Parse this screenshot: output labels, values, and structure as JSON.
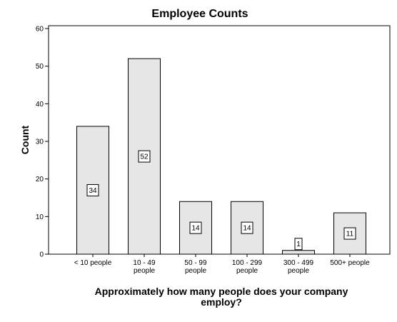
{
  "chart_data": {
    "type": "bar",
    "title": "Employee Counts",
    "ylabel": "Count",
    "xlabel_lines": [
      "Approximately how many people does your company",
      "employ?"
    ],
    "categories": [
      [
        "< 10 people"
      ],
      [
        "10 - 49",
        "people"
      ],
      [
        "50 - 99",
        "people"
      ],
      [
        "100 - 299",
        "people"
      ],
      [
        "300 - 499",
        "people"
      ],
      [
        "500+ people"
      ]
    ],
    "values": [
      34,
      52,
      14,
      14,
      1,
      11
    ],
    "data_labels": [
      "34",
      "52",
      "14",
      "14",
      "1",
      "11"
    ],
    "ylim": [
      0,
      60
    ],
    "yticks": [
      0,
      10,
      20,
      30,
      40,
      50,
      60
    ],
    "grid": false,
    "bar_fill": "#e6e6e6",
    "bar_stroke": "#000000"
  }
}
